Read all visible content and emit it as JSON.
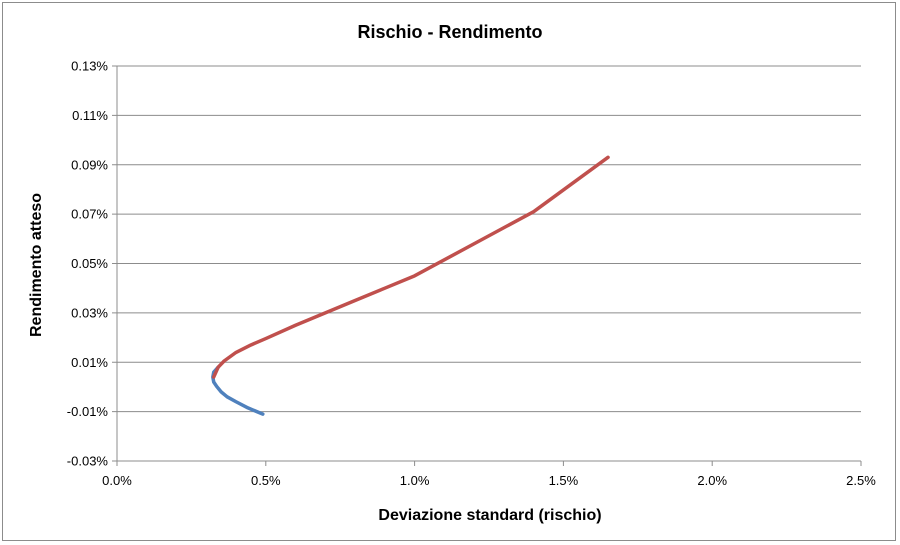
{
  "chart_data": {
    "type": "line",
    "title": "Rischio - Rendimento",
    "xlabel": "Deviazione standard (rischio)",
    "ylabel": "Rendimento atteso",
    "xlim": [
      0,
      0.025
    ],
    "ylim": [
      -0.0003,
      0.0013
    ],
    "x_ticks": [
      0,
      0.005,
      0.01,
      0.015,
      0.02,
      0.025
    ],
    "x_tick_labels": [
      "0.0%",
      "0.5%",
      "1.0%",
      "1.5%",
      "2.0%",
      "2.5%"
    ],
    "y_ticks": [
      -0.0003,
      -0.0001,
      0.0001,
      0.0003,
      0.0005,
      0.0007,
      0.0009,
      0.0011,
      0.0013
    ],
    "y_tick_labels": [
      "-0.03%",
      "-0.01%",
      "0.01%",
      "0.03%",
      "0.05%",
      "0.07%",
      "0.09%",
      "0.11%",
      "0.13%"
    ],
    "grid": true,
    "legend": "none",
    "series": [
      {
        "color": "#4f81bd",
        "x": [
          0.0049,
          0.0044,
          0.004,
          0.0037,
          0.0035,
          0.00335,
          0.00325,
          0.00322,
          0.00325,
          0.0034
        ],
        "y": [
          -0.00011,
          -8.5e-05,
          -6e-05,
          -4e-05,
          -2e-05,
          2e-06,
          2e-05,
          4e-05,
          6e-05,
          8e-05
        ]
      },
      {
        "color": "#c0504d",
        "x": [
          0.00325,
          0.0034,
          0.0036,
          0.004,
          0.0045,
          0.005,
          0.006,
          0.007,
          0.008,
          0.009,
          0.01,
          0.012,
          0.014,
          0.0165
        ],
        "y": [
          4e-05,
          8e-05,
          0.000105,
          0.00014,
          0.00017,
          0.000196,
          0.00025,
          0.0003,
          0.00035,
          0.0004,
          0.00045,
          0.00058,
          0.00071,
          0.00093
        ]
      }
    ]
  }
}
